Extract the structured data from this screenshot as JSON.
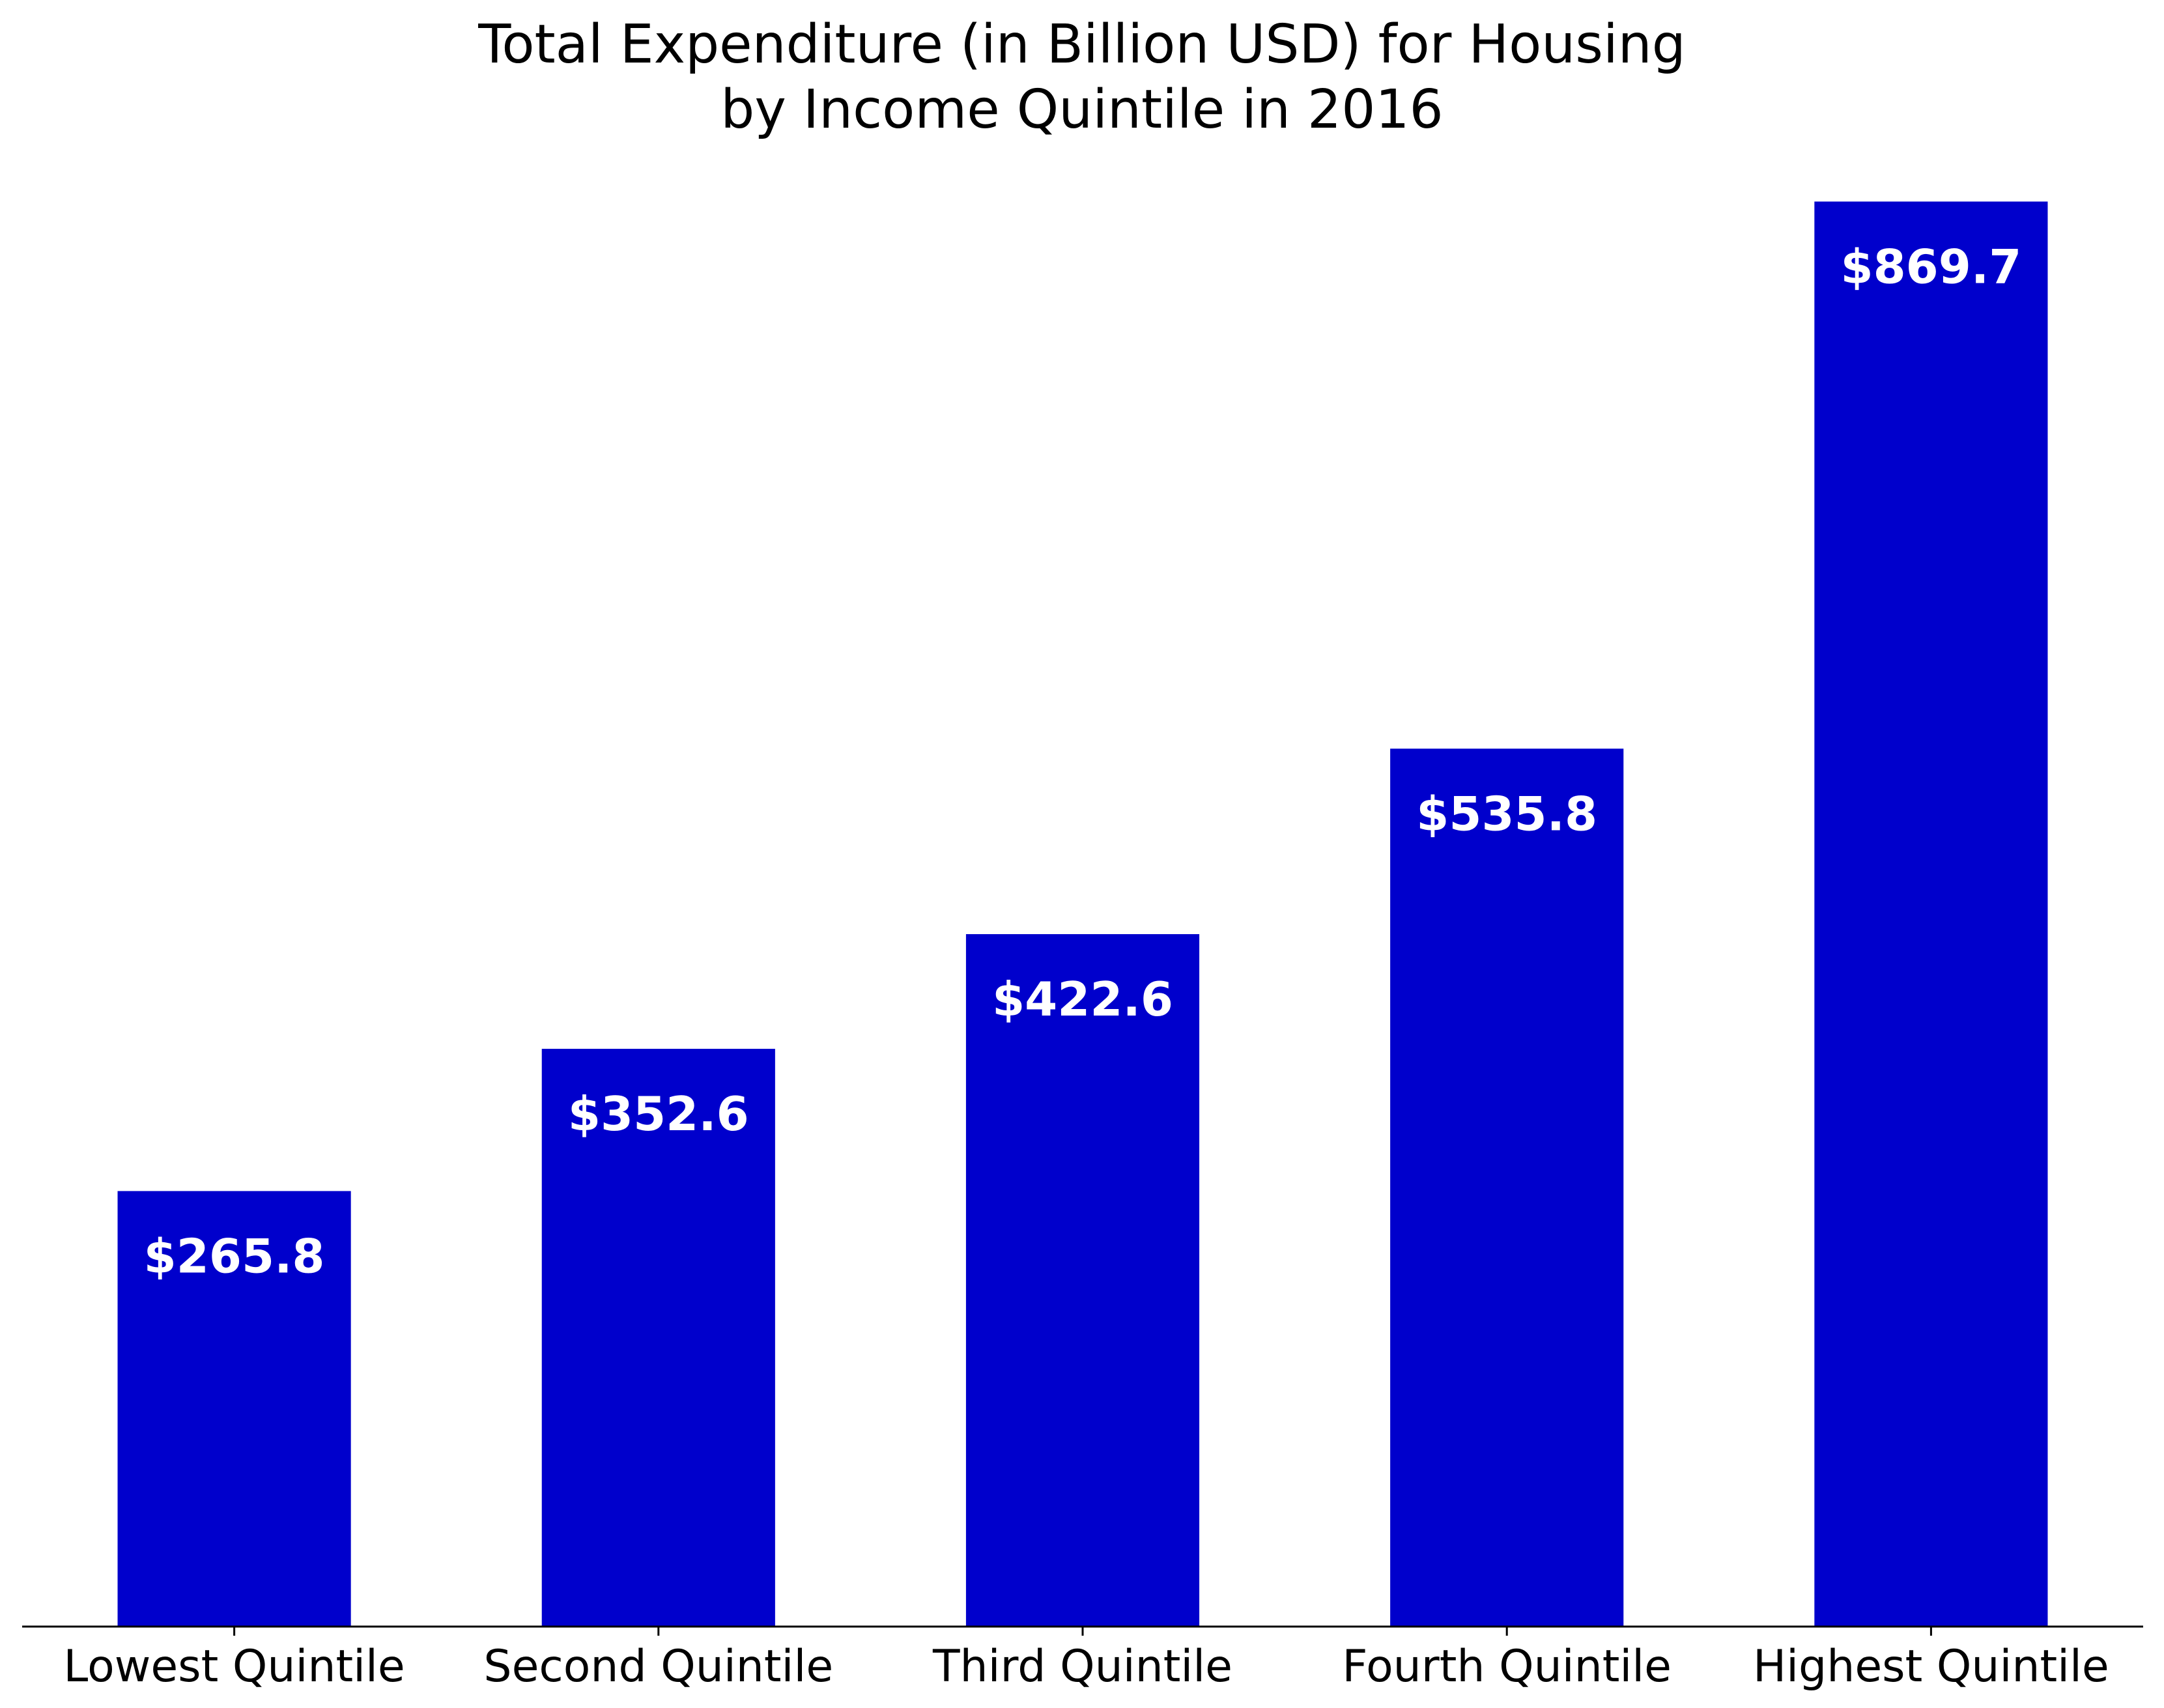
{
  "chart_data": {
    "type": "bar",
    "title_lines": [
      "Total Expenditure (in Billion USD) for Housing",
      "by Income Quintile in 2016"
    ],
    "categories": [
      "Lowest Quintile",
      "Second Quintile",
      "Third Quintile",
      "Fourth Quintile",
      "Highest Quintile"
    ],
    "values": [
      265.8,
      352.6,
      422.6,
      535.8,
      869.7
    ],
    "value_labels": [
      "$265.8",
      "$352.6",
      "$422.6",
      "$535.8",
      "$869.7"
    ],
    "xlabel": "",
    "ylabel": "",
    "ylim": [
      0,
      913.2
    ],
    "y_axis_visible": false,
    "grid": false,
    "legend": "none",
    "colors": {
      "bar": "#0000CC",
      "label": "#ffffff",
      "axis": "#000000"
    }
  }
}
